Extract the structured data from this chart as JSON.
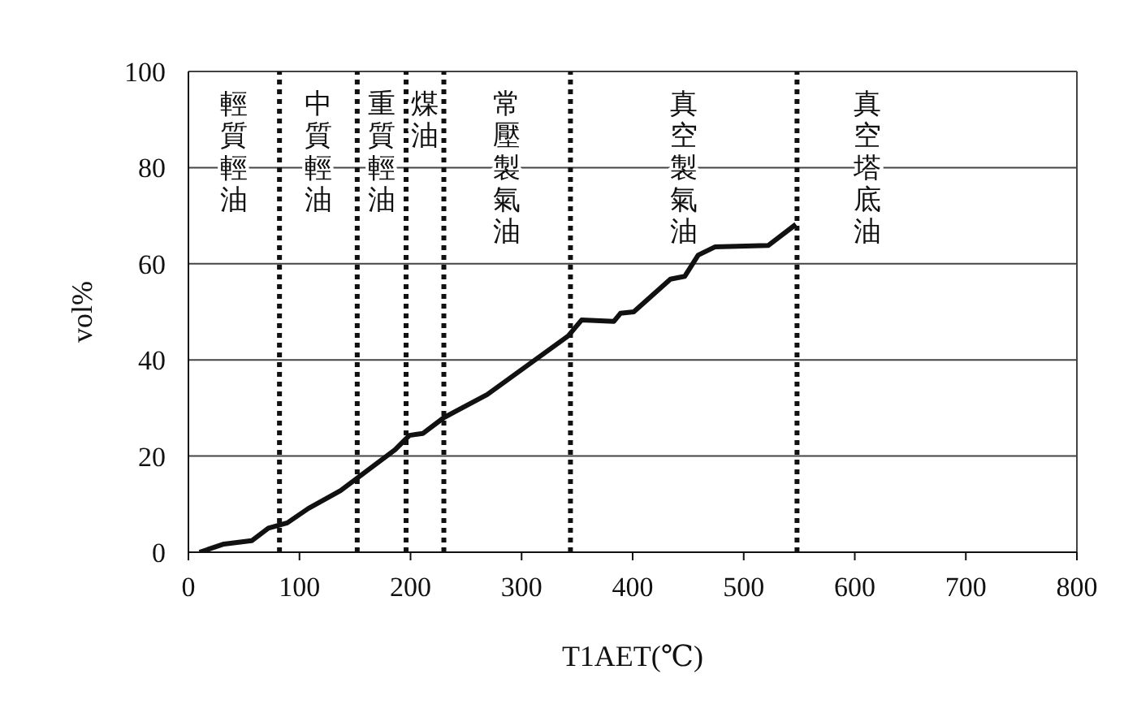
{
  "chart_data": {
    "type": "line",
    "xlabel": "T1AET(℃)",
    "ylabel": "vol%",
    "x": [
      10,
      32,
      57,
      72,
      89,
      108,
      137,
      186,
      199,
      211,
      230,
      269,
      342,
      354,
      383,
      389,
      401,
      434,
      447,
      459,
      474,
      522,
      547
    ],
    "series": [
      {
        "color": "#111111",
        "values": [
          0,
          1.7,
          2.4,
          5,
          6.1,
          9.1,
          12.8,
          21.3,
          24.3,
          24.7,
          28,
          32.8,
          45,
          48.3,
          48,
          49.7,
          50,
          56.8,
          57.4,
          61.8,
          63.5,
          63.8,
          68.2
        ]
      }
    ],
    "xlim": [
      0,
      800
    ],
    "xticks": [
      0,
      100,
      200,
      300,
      400,
      500,
      600,
      700,
      800
    ],
    "ylim": [
      0,
      100
    ],
    "yticks": [
      0,
      20,
      40,
      60,
      80,
      100
    ],
    "grid": "y",
    "marker": "none",
    "line_style": "solid",
    "ref_lines": [
      {
        "axis": "x",
        "value": 82,
        "color": "#111111",
        "line_style": "dotted"
      },
      {
        "axis": "x",
        "value": 152,
        "color": "#111111",
        "line_style": "dotted"
      },
      {
        "axis": "x",
        "value": 196,
        "color": "#111111",
        "line_style": "dotted"
      },
      {
        "axis": "x",
        "value": 230,
        "color": "#111111",
        "line_style": "dotted"
      },
      {
        "axis": "x",
        "value": 344,
        "color": "#111111",
        "line_style": "dotted"
      },
      {
        "axis": "x",
        "value": 548,
        "color": "#111111",
        "line_style": "dotted"
      }
    ],
    "annotations": [
      "輕質輕油",
      "中質輕油",
      "重質輕油",
      "煤油",
      "常壓製氣油",
      "真空製氣油",
      "真空塔底油"
    ]
  }
}
